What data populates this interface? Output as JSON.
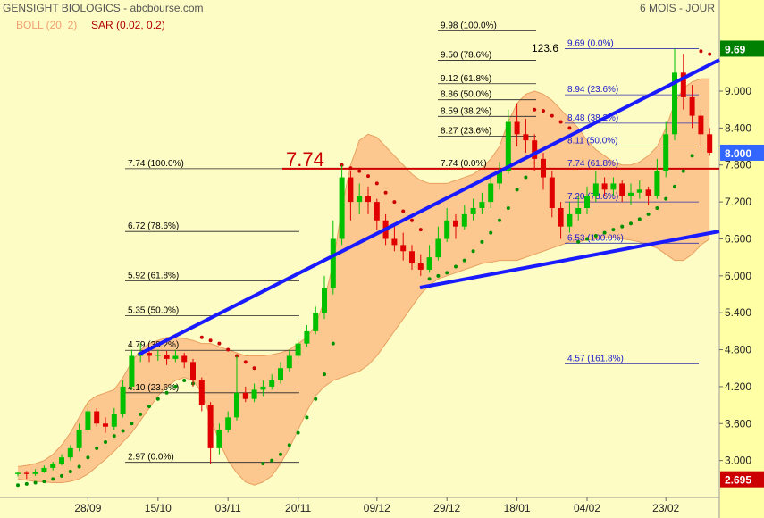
{
  "chart_data": {
    "type": "candlestick",
    "title": "GENSIGHT BIOLOGICS - abcbourse.com",
    "period": "6 MOIS - JOUR",
    "indicators": [
      {
        "label": "BOLL (20, 2)",
        "color": "#f0a070"
      },
      {
        "label": "SAR (0.02, 0.2)",
        "color": "#b00000"
      }
    ],
    "categories": [
      null,
      null,
      null,
      null,
      null,
      null,
      null,
      null,
      "28/09",
      null,
      null,
      null,
      null,
      null,
      null,
      null,
      "15/10",
      null,
      null,
      null,
      null,
      null,
      null,
      null,
      "03/11",
      null,
      null,
      null,
      null,
      null,
      null,
      null,
      "20/11",
      null,
      null,
      null,
      null,
      null,
      null,
      null,
      null,
      "09/12",
      null,
      null,
      null,
      null,
      null,
      null,
      null,
      "29/12",
      null,
      null,
      null,
      null,
      null,
      null,
      null,
      "18/01",
      null,
      null,
      null,
      null,
      null,
      null,
      null,
      "04/02",
      null,
      null,
      null,
      null,
      null,
      null,
      null,
      null,
      "23/02",
      null,
      null,
      null,
      null,
      null
    ],
    "candles": [
      [
        2.78,
        2.82,
        2.74,
        2.8
      ],
      [
        2.8,
        2.83,
        2.7,
        2.78
      ],
      [
        2.78,
        2.86,
        2.75,
        2.82
      ],
      [
        2.82,
        2.92,
        2.8,
        2.88
      ],
      [
        2.88,
        2.98,
        2.84,
        2.95
      ],
      [
        2.95,
        3.1,
        2.92,
        3.05
      ],
      [
        3.05,
        3.25,
        3.0,
        3.2
      ],
      [
        3.2,
        3.6,
        3.15,
        3.5
      ],
      [
        3.5,
        3.92,
        3.45,
        3.8
      ],
      [
        3.8,
        3.85,
        3.55,
        3.6
      ],
      [
        3.6,
        3.7,
        3.45,
        3.55
      ],
      [
        3.55,
        3.85,
        3.5,
        3.75
      ],
      [
        3.75,
        4.3,
        3.7,
        4.2
      ],
      [
        4.2,
        4.8,
        4.15,
        4.7
      ],
      [
        4.7,
        4.9,
        4.6,
        4.75
      ],
      [
        4.75,
        4.85,
        4.6,
        4.7
      ],
      [
        4.7,
        4.8,
        4.62,
        4.72
      ],
      [
        4.72,
        4.78,
        4.55,
        4.65
      ],
      [
        4.65,
        4.8,
        4.6,
        4.7
      ],
      [
        4.7,
        4.75,
        4.5,
        4.6
      ],
      [
        4.6,
        4.65,
        4.2,
        4.3
      ],
      [
        4.3,
        4.35,
        3.8,
        3.9
      ],
      [
        3.9,
        3.95,
        2.95,
        3.2
      ],
      [
        3.2,
        3.6,
        3.1,
        3.5
      ],
      [
        3.5,
        3.8,
        3.45,
        3.7
      ],
      [
        3.7,
        4.7,
        3.65,
        4.1
      ],
      [
        4.1,
        4.2,
        3.95,
        4.0
      ],
      [
        4.0,
        4.25,
        3.95,
        4.15
      ],
      [
        4.15,
        4.3,
        4.05,
        4.2
      ],
      [
        4.2,
        4.4,
        4.15,
        4.3
      ],
      [
        4.3,
        4.6,
        4.25,
        4.5
      ],
      [
        4.5,
        4.8,
        4.45,
        4.7
      ],
      [
        4.7,
        5.0,
        4.65,
        4.9
      ],
      [
        4.9,
        5.2,
        4.85,
        5.1
      ],
      [
        5.1,
        5.5,
        5.05,
        5.4
      ],
      [
        5.4,
        6.0,
        5.3,
        5.8
      ],
      [
        5.8,
        6.9,
        5.7,
        6.6
      ],
      [
        6.6,
        7.8,
        6.5,
        7.6
      ],
      [
        7.6,
        7.7,
        6.9,
        7.2
      ],
      [
        7.2,
        7.5,
        7.0,
        7.3
      ],
      [
        7.3,
        7.45,
        7.0,
        7.2
      ],
      [
        7.2,
        7.25,
        6.75,
        6.9
      ],
      [
        6.9,
        7.0,
        6.5,
        6.6
      ],
      [
        6.6,
        6.8,
        6.4,
        6.5
      ],
      [
        6.5,
        6.7,
        6.25,
        6.4
      ],
      [
        6.4,
        6.5,
        6.1,
        6.2
      ],
      [
        6.2,
        6.35,
        6.0,
        6.1
      ],
      [
        6.1,
        6.5,
        6.05,
        6.3
      ],
      [
        6.3,
        6.8,
        6.25,
        6.6
      ],
      [
        6.6,
        7.1,
        6.55,
        6.9
      ],
      [
        6.9,
        7.0,
        6.6,
        6.8
      ],
      [
        6.8,
        7.15,
        6.75,
        7.0
      ],
      [
        7.0,
        7.25,
        6.9,
        7.1
      ],
      [
        7.1,
        7.35,
        7.0,
        7.2
      ],
      [
        7.2,
        7.6,
        7.1,
        7.5
      ],
      [
        7.5,
        7.85,
        7.4,
        7.7
      ],
      [
        7.7,
        8.7,
        7.65,
        8.5
      ],
      [
        8.5,
        8.8,
        8.1,
        8.3
      ],
      [
        8.3,
        8.55,
        8.0,
        8.2
      ],
      [
        8.2,
        8.3,
        7.7,
        7.9
      ],
      [
        7.9,
        8.0,
        7.4,
        7.6
      ],
      [
        7.6,
        7.7,
        6.95,
        7.1
      ],
      [
        7.1,
        7.2,
        6.6,
        6.8
      ],
      [
        6.8,
        7.2,
        6.7,
        7.0
      ],
      [
        7.0,
        7.3,
        6.9,
        7.1
      ],
      [
        7.1,
        7.45,
        7.0,
        7.3
      ],
      [
        7.3,
        7.7,
        7.2,
        7.5
      ],
      [
        7.5,
        7.6,
        7.3,
        7.4
      ],
      [
        7.4,
        7.6,
        7.3,
        7.5
      ],
      [
        7.5,
        7.55,
        7.2,
        7.3
      ],
      [
        7.3,
        7.5,
        7.15,
        7.35
      ],
      [
        7.35,
        7.55,
        7.25,
        7.4
      ],
      [
        7.4,
        7.45,
        7.15,
        7.3
      ],
      [
        7.3,
        7.9,
        7.25,
        7.7
      ],
      [
        7.7,
        8.5,
        7.6,
        8.3
      ],
      [
        8.3,
        9.69,
        8.2,
        9.3
      ],
      [
        9.3,
        9.6,
        8.7,
        8.9
      ],
      [
        8.9,
        9.1,
        8.4,
        8.6
      ],
      [
        8.6,
        8.7,
        8.1,
        8.3
      ],
      [
        8.3,
        8.4,
        7.95,
        8.0
      ]
    ],
    "up_color": "#00c000",
    "down_color": "#e00000",
    "boll_upper": [
      2.9,
      2.92,
      2.95,
      3.0,
      3.1,
      3.25,
      3.45,
      3.7,
      3.95,
      4.05,
      4.1,
      4.15,
      4.35,
      4.6,
      4.8,
      4.9,
      4.95,
      5.0,
      5.0,
      4.98,
      4.95,
      4.9,
      4.9,
      4.85,
      4.8,
      4.75,
      4.7,
      4.7,
      4.7,
      4.72,
      4.75,
      4.8,
      4.9,
      5.0,
      5.2,
      5.6,
      6.2,
      7.1,
      7.8,
      8.2,
      8.3,
      8.25,
      8.1,
      7.95,
      7.8,
      7.65,
      7.55,
      7.5,
      7.5,
      7.5,
      7.55,
      7.6,
      7.65,
      7.75,
      7.9,
      8.1,
      8.5,
      8.8,
      8.95,
      9.0,
      8.95,
      8.85,
      8.7,
      8.55,
      8.4,
      8.2,
      8.05,
      7.95,
      7.85,
      7.8,
      7.8,
      7.85,
      7.95,
      8.1,
      8.4,
      8.8,
      9.05,
      9.15,
      9.2,
      9.2
    ],
    "boll_lower": [
      2.7,
      2.68,
      2.66,
      2.65,
      2.64,
      2.64,
      2.66,
      2.7,
      2.78,
      2.9,
      3.02,
      3.15,
      3.3,
      3.45,
      3.65,
      3.85,
      4.05,
      4.2,
      4.3,
      4.35,
      4.3,
      4.1,
      3.7,
      3.3,
      3.0,
      2.8,
      2.65,
      2.6,
      2.65,
      2.75,
      2.95,
      3.2,
      3.5,
      3.8,
      4.05,
      4.2,
      4.3,
      4.35,
      4.4,
      4.45,
      4.55,
      4.7,
      4.9,
      5.1,
      5.3,
      5.5,
      5.7,
      5.85,
      5.95,
      6.0,
      6.05,
      6.1,
      6.15,
      6.2,
      6.22,
      6.25,
      6.25,
      6.25,
      6.3,
      6.35,
      6.4,
      6.45,
      6.5,
      6.55,
      6.55,
      6.58,
      6.6,
      6.62,
      6.62,
      6.6,
      6.58,
      6.55,
      6.5,
      6.45,
      6.35,
      6.25,
      6.25,
      6.35,
      6.5,
      6.6
    ],
    "band_fill": "#fcc890",
    "band_stroke": "#e8a060",
    "sar": [
      2.6,
      2.62,
      2.64,
      2.66,
      2.7,
      2.75,
      2.82,
      2.9,
      3.05,
      3.2,
      3.3,
      3.4,
      3.48,
      3.6,
      3.75,
      3.88,
      4.0,
      4.1,
      4.2,
      4.3,
      4.25,
      5.0,
      4.95,
      4.9,
      4.8,
      4.7,
      4.6,
      4.5,
      2.95,
      3.0,
      3.1,
      3.25,
      3.45,
      3.7,
      4.0,
      4.4,
      4.9,
      7.8,
      7.75,
      7.7,
      7.62,
      7.5,
      7.35,
      7.2,
      7.05,
      6.9,
      6.75,
      5.95,
      6.0,
      6.05,
      6.15,
      6.25,
      6.4,
      6.55,
      6.7,
      6.9,
      7.1,
      7.4,
      7.6,
      8.7,
      8.68,
      8.6,
      8.5,
      8.4,
      6.55,
      6.6,
      6.65,
      6.7,
      6.75,
      6.8,
      6.85,
      6.92,
      7.0,
      7.1,
      7.25,
      7.45,
      7.7,
      7.95,
      9.65,
      9.6
    ],
    "sar_up_color": "#009000",
    "sar_down_color": "#cc0000",
    "ylim": [
      2.4,
      10.48
    ],
    "yticks": [
      {
        "value": 3,
        "label": "3.000"
      },
      {
        "value": 3.6,
        "label": "3.600"
      },
      {
        "value": 4.2,
        "label": "4.200"
      },
      {
        "value": 4.8,
        "label": "4.800"
      },
      {
        "value": 5.4,
        "label": "5.400"
      },
      {
        "value": 6,
        "label": "6.000"
      },
      {
        "value": 6.6,
        "label": "6.600"
      },
      {
        "value": 7.2,
        "label": "7.200"
      },
      {
        "value": 7.8,
        "label": "7.800"
      },
      {
        "value": 8.4,
        "label": "8.400"
      },
      {
        "value": 9,
        "label": "9.000"
      }
    ],
    "price_tags": [
      {
        "value": 9.69,
        "label": "9.69",
        "color": "#008000"
      },
      {
        "value": 8.0,
        "label": "8.000",
        "color": "#3366ff"
      },
      {
        "value": 2.695,
        "label": "2.695",
        "color": "#cc0000"
      }
    ],
    "level": {
      "value": 7.74,
      "label": "7.74",
      "color": "#cc0000"
    },
    "fib_sets": [
      {
        "color": "#000000",
        "levels": [
          {
            "label": "7.74  (100.0%)",
            "value": 7.74
          },
          {
            "label": "6.72  (78.6%)",
            "value": 6.72
          },
          {
            "label": "5.92  (61.8%)",
            "value": 5.92
          },
          {
            "label": "5.35  (50.0%)",
            "value": 5.35
          },
          {
            "label": "4.79  (38.2%)",
            "value": 4.79
          },
          {
            "label": "4.10  (23.6%)",
            "value": 4.1
          },
          {
            "label": "2.97  (0.0%)",
            "value": 2.97
          }
        ]
      },
      {
        "color": "#000000",
        "levels": [
          {
            "label": "9.98  (100.0%)",
            "value": 9.98
          },
          {
            "label": "9.50  (78.6%)",
            "value": 9.5
          },
          {
            "label": "9.12  (61.8%)",
            "value": 9.12
          },
          {
            "label": "8.86  (50.0%)",
            "value": 8.86
          },
          {
            "label": "8.59  (38.2%)",
            "value": 8.59
          },
          {
            "label": "8.27  (23.6%)",
            "value": 8.27
          },
          {
            "label": "7.74  (0.0%)",
            "value": 7.74
          }
        ]
      },
      {
        "color": "#1a1acc",
        "levels": [
          {
            "label": "9.69  (0.0%)",
            "value": 9.69
          },
          {
            "label": "8.94  (23.6%)",
            "value": 8.94
          },
          {
            "label": "8.48  (38.2%)",
            "value": 8.48
          },
          {
            "label": "8.11  (50.0%)",
            "value": 8.11
          },
          {
            "label": "7.74  (61.8%)",
            "value": 7.74
          },
          {
            "label": "7.20  (78.6%)",
            "value": 7.2
          },
          {
            "label": "6.53  (100.0%)",
            "value": 6.53
          },
          {
            "label": "4.57  (161.8%)",
            "value": 4.57
          }
        ]
      }
    ],
    "fib_note": "123.6"
  }
}
